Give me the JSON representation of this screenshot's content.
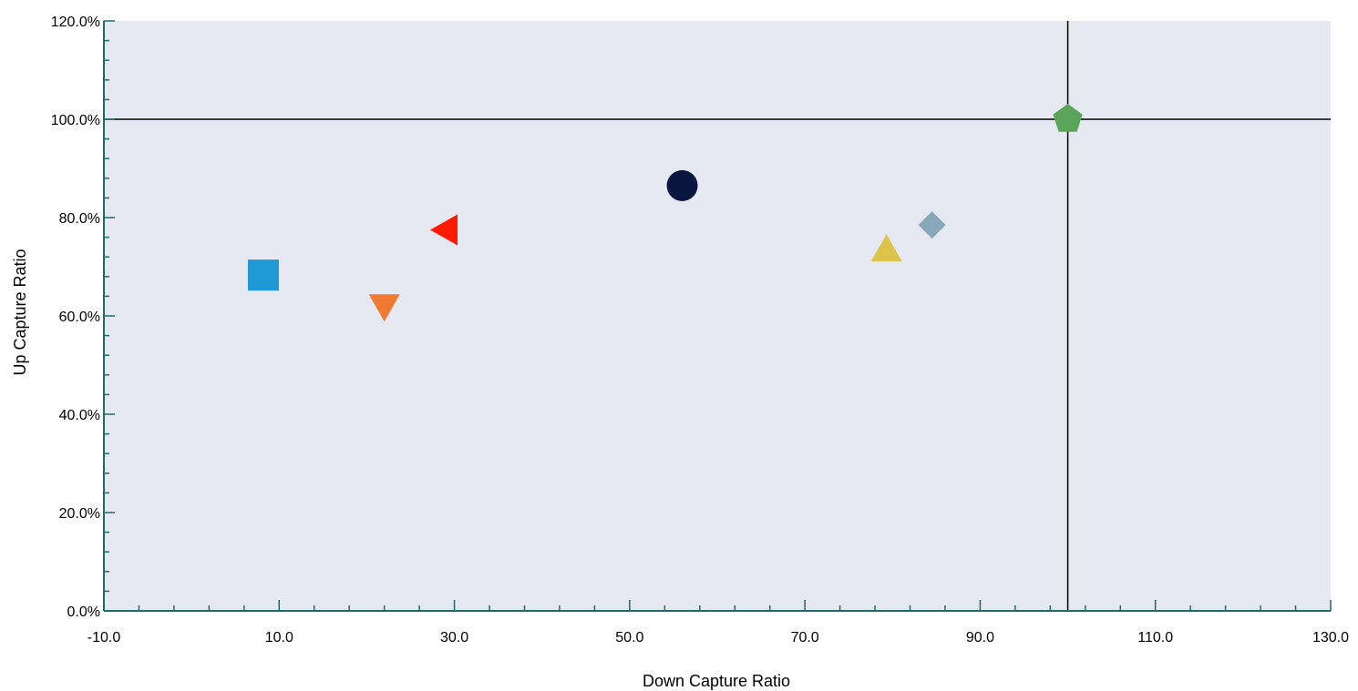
{
  "chart_data": {
    "type": "scatter",
    "title": "",
    "xlabel": "Down Capture Ratio",
    "ylabel": "Up Capture Ratio",
    "xlim": [
      -10,
      130
    ],
    "ylim": [
      0,
      120
    ],
    "x_major_ticks": [
      -10,
      10,
      30,
      50,
      70,
      90,
      110,
      130
    ],
    "x_tick_labels": [
      "-10.0",
      "10.0",
      "30.0",
      "50.0",
      "70.0",
      "90.0",
      "110.0",
      "130.0"
    ],
    "y_major_ticks": [
      0,
      20,
      40,
      60,
      80,
      100,
      120
    ],
    "y_tick_labels": [
      "0.0%",
      "20.0%",
      "40.0%",
      "60.0%",
      "80.0%",
      "100.0%",
      "120.0%"
    ],
    "x_minor_step": 4,
    "y_minor_step": 4,
    "reference_lines": {
      "x": 100,
      "y": 100
    },
    "grid": false,
    "legend": "none",
    "plot_background": "#e6e9f1",
    "axis_color": "#1e6b6b",
    "points": [
      {
        "x": 8.2,
        "y": 68.3,
        "marker": "square",
        "color": "#1f98d6"
      },
      {
        "x": 22.0,
        "y": 62.0,
        "marker": "triangle-down",
        "color": "#f07a33"
      },
      {
        "x": 29.0,
        "y": 77.5,
        "marker": "triangle-left",
        "color": "#ff1a00"
      },
      {
        "x": 56.0,
        "y": 86.5,
        "marker": "circle",
        "color": "#0a1540"
      },
      {
        "x": 79.3,
        "y": 73.5,
        "marker": "triangle-up",
        "color": "#dcc44a"
      },
      {
        "x": 84.5,
        "y": 78.5,
        "marker": "diamond",
        "color": "#86a8b8"
      },
      {
        "x": 100.0,
        "y": 100.0,
        "marker": "pentagon",
        "color": "#5aa55a"
      }
    ]
  }
}
